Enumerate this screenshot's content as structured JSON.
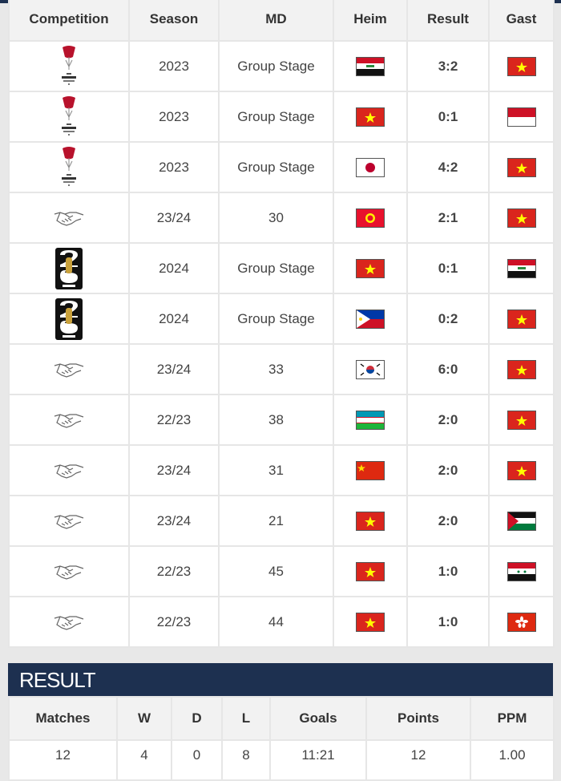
{
  "headers": [
    "Competition",
    "Season",
    "MD",
    "Heim",
    "Result",
    "Gast"
  ],
  "colors": {
    "loss": "#b0001e",
    "win": "#6a9a1a",
    "link": "#2a6fa0",
    "banner": "#1d3050"
  },
  "matches": [
    {
      "competition": "asian-cup-logo",
      "season": "2023",
      "md": "Group Stage",
      "home": "iraq",
      "result": "3:2",
      "outcome": "loss",
      "away": "vietnam"
    },
    {
      "competition": "asian-cup-logo",
      "season": "2023",
      "md": "Group Stage",
      "home": "vietnam",
      "result": "0:1",
      "outcome": "loss",
      "away": "indonesia"
    },
    {
      "competition": "asian-cup-logo",
      "season": "2023",
      "md": "Group Stage",
      "home": "japan",
      "result": "4:2",
      "outcome": "loss",
      "away": "vietnam"
    },
    {
      "competition": "friendly-handshake-icon",
      "season": "23/24",
      "md": "30",
      "home": "kyrgyzstan",
      "result": "2:1",
      "outcome": "loss",
      "away": "vietnam"
    },
    {
      "competition": "fifa-world-cup-2026-logo",
      "season": "2024",
      "md": "Group Stage",
      "home": "vietnam",
      "result": "0:1",
      "outcome": "loss",
      "away": "iraq"
    },
    {
      "competition": "fifa-world-cup-2026-logo",
      "season": "2024",
      "md": "Group Stage",
      "home": "philippines",
      "result": "0:2",
      "outcome": "win",
      "away": "vietnam"
    },
    {
      "competition": "friendly-handshake-icon",
      "season": "23/24",
      "md": "33",
      "home": "south-korea",
      "result": "6:0",
      "outcome": "loss",
      "away": "vietnam"
    },
    {
      "competition": "friendly-handshake-icon",
      "season": "22/23",
      "md": "38",
      "home": "uzbekistan",
      "result": "2:0",
      "outcome": "loss",
      "away": "vietnam"
    },
    {
      "competition": "friendly-handshake-icon",
      "season": "23/24",
      "md": "31",
      "home": "china",
      "result": "2:0",
      "outcome": "loss",
      "away": "vietnam"
    },
    {
      "competition": "friendly-handshake-icon",
      "season": "23/24",
      "md": "21",
      "home": "vietnam",
      "result": "2:0",
      "outcome": "win",
      "away": "palestine"
    },
    {
      "competition": "friendly-handshake-icon",
      "season": "22/23",
      "md": "45",
      "home": "vietnam",
      "result": "1:0",
      "outcome": "win",
      "away": "syria"
    },
    {
      "competition": "friendly-handshake-icon",
      "season": "22/23",
      "md": "44",
      "home": "vietnam",
      "result": "1:0",
      "outcome": "win",
      "away": "hong-kong"
    }
  ],
  "result_title": "RESULT",
  "stats_headers": [
    "Matches",
    "W",
    "D",
    "L",
    "Goals",
    "Points",
    "PPM"
  ],
  "stats_values": [
    "12",
    "4",
    "0",
    "8",
    "11:21",
    "12",
    "1.00"
  ]
}
